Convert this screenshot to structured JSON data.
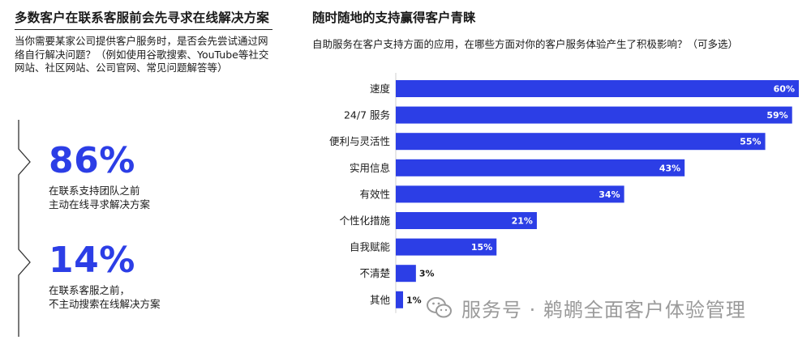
{
  "left": {
    "title": "多数客户在联系客服前会先寻求在线解决方案",
    "question": "当你需要某家公司提供客户服务时，是否会先尝试通过网络自行解决问题？（例如使用谷歌搜索、YouTube等社交网站、社区网站、公司官网、常见问题解答等）",
    "stats": [
      {
        "value": "86%",
        "desc_line1": "在联系支持团队之前",
        "desc_line2": "主动在线寻求解决方案"
      },
      {
        "value": "14%",
        "desc_line1": "在联系客服之前，",
        "desc_line2": "不主动搜索在线解决方案"
      }
    ]
  },
  "right": {
    "title": "随时随地的支持赢得客户青睐",
    "subtitle": "自助服务在客户支持方面的应用，在哪些方面对你的客户服务体验产生了积极影响？（可多选）"
  },
  "chart_data": {
    "type": "bar",
    "orientation": "horizontal",
    "categories": [
      "速度",
      "24/7 服务",
      "便利与灵活性",
      "实用信息",
      "有效性",
      "个性化措施",
      "自我赋能",
      "不清楚",
      "其他"
    ],
    "values": [
      60,
      59,
      55,
      43,
      34,
      21,
      15,
      3,
      1
    ],
    "value_labels": [
      "60%",
      "59%",
      "55%",
      "43%",
      "34%",
      "21%",
      "15%",
      "3%",
      "1%"
    ],
    "xlim": [
      0,
      60
    ],
    "bar_color": "#2c3ee6",
    "grid": false,
    "legend": "none"
  },
  "watermark": {
    "text": "服务号 · 鹈鹕全面客户体验管理",
    "icon": "wechat-icon"
  },
  "colors": {
    "accent": "#2c3ee6",
    "text": "#1a1a1a",
    "watermark": "#9a9a9a"
  }
}
